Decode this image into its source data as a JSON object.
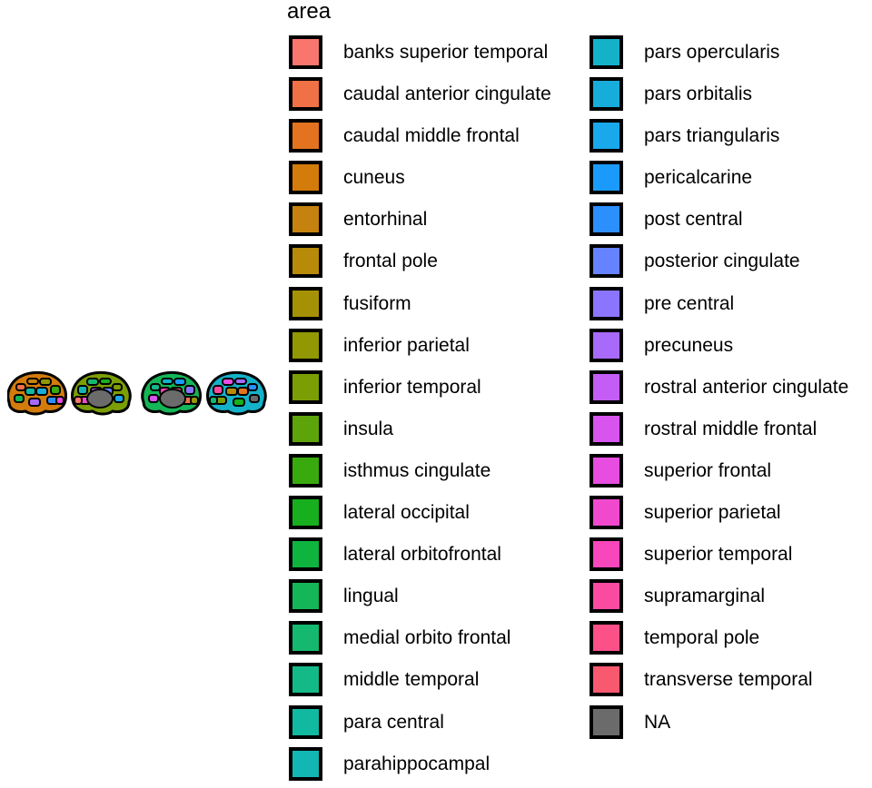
{
  "chart_data": {
    "type": "brain-atlas",
    "legend": {
      "title": "area",
      "items": [
        {
          "label": "banks superior temporal",
          "color": "#F8766D"
        },
        {
          "label": "caudal anterior cingulate",
          "color": "#F07145"
        },
        {
          "label": "caudal middle frontal",
          "color": "#E3731F"
        },
        {
          "label": "cuneus",
          "color": "#D37B0B"
        },
        {
          "label": "entorhinal",
          "color": "#C5820E"
        },
        {
          "label": "frontal pole",
          "color": "#B78A0A"
        },
        {
          "label": "fusiform",
          "color": "#A59106"
        },
        {
          "label": "inferior parietal",
          "color": "#929804"
        },
        {
          "label": "inferior temporal",
          "color": "#7B9E05"
        },
        {
          "label": "insula",
          "color": "#5DA40B"
        },
        {
          "label": "isthmus cingulate",
          "color": "#39AA0E"
        },
        {
          "label": "lateral occipital",
          "color": "#17AF1D"
        },
        {
          "label": "lateral orbitofrontal",
          "color": "#0FB43E"
        },
        {
          "label": "lingual",
          "color": "#14B657"
        },
        {
          "label": "medial orbito frontal",
          "color": "#15B86F"
        },
        {
          "label": "middle temporal",
          "color": "#14B988"
        },
        {
          "label": "para central",
          "color": "#12B9A1"
        },
        {
          "label": "parahippocampal",
          "color": "#12B7B4"
        },
        {
          "label": "pars opercularis",
          "color": "#14B2C9"
        },
        {
          "label": "pars orbitalis",
          "color": "#17ADDB"
        },
        {
          "label": "pars triangularis",
          "color": "#19A8EC"
        },
        {
          "label": "pericalcarine",
          "color": "#1A9BFC"
        },
        {
          "label": "post central",
          "color": "#2B8FFE"
        },
        {
          "label": "posterior cingulate",
          "color": "#6582FF"
        },
        {
          "label": "pre central",
          "color": "#8B75FF"
        },
        {
          "label": "precuneus",
          "color": "#A86AFB"
        },
        {
          "label": "rostral anterior cingulate",
          "color": "#C45DF6"
        },
        {
          "label": "rostral middle frontal",
          "color": "#D854EF"
        },
        {
          "label": "superior frontal",
          "color": "#E64DE0"
        },
        {
          "label": "superior parietal",
          "color": "#F049CE"
        },
        {
          "label": "superior temporal",
          "color": "#F846BC"
        },
        {
          "label": "supramarginal",
          "color": "#FB4BA1"
        },
        {
          "label": "temporal pole",
          "color": "#FB5088"
        },
        {
          "label": "transverse temporal",
          "color": "#F8596F"
        },
        {
          "label": "NA",
          "color": "#6B6B6B"
        }
      ]
    }
  }
}
